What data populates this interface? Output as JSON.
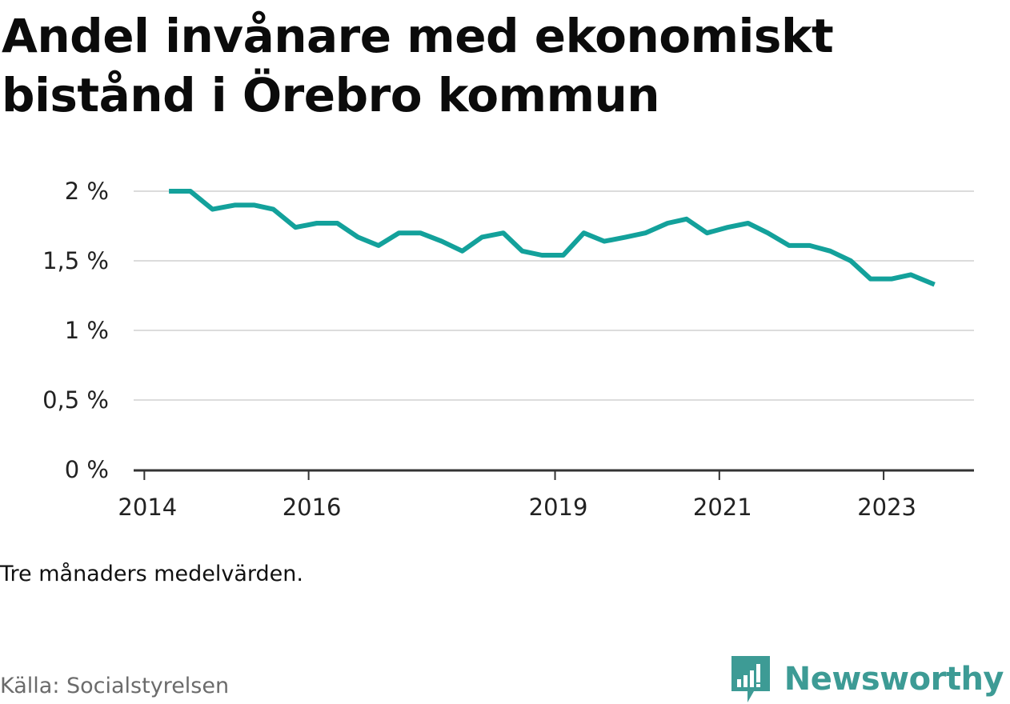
{
  "title": "Andel invånare med ekonomiskt bistånd i Örebro kommun",
  "note": "Tre månaders medelvärden.",
  "source": "Källa: Socialstyrelsen",
  "brand": {
    "name": "Newsworthy",
    "logo_icon": "bar-chart-speech-bubble-icon",
    "color": "#3d9b95"
  },
  "chart_data": {
    "type": "line",
    "y_ticks": [
      {
        "value": 0,
        "label": "0 %"
      },
      {
        "value": 0.5,
        "label": "0,5 %"
      },
      {
        "value": 1,
        "label": "1 %"
      },
      {
        "value": 1.5,
        "label": "1,5 %"
      },
      {
        "value": 2,
        "label": "2 %"
      }
    ],
    "x_ticks": [
      {
        "value": 2014.0,
        "label": "2014"
      },
      {
        "value": 2016.0,
        "label": "2016"
      },
      {
        "value": 2019.0,
        "label": "2019"
      },
      {
        "value": 2021.0,
        "label": "2021"
      },
      {
        "value": 2023.0,
        "label": "2023"
      }
    ],
    "ylim": [
      0,
      2
    ],
    "xlim": [
      2013.87,
      2024.1
    ],
    "grid": true,
    "line_color": "#13a19b",
    "series": [
      {
        "points": [
          {
            "x": 2014.3,
            "y": 2.0
          },
          {
            "x": 2014.56,
            "y": 2.0
          },
          {
            "x": 2014.83,
            "y": 1.87
          },
          {
            "x": 2015.1,
            "y": 1.9
          },
          {
            "x": 2015.34,
            "y": 1.9
          },
          {
            "x": 2015.57,
            "y": 1.87
          },
          {
            "x": 2015.84,
            "y": 1.74
          },
          {
            "x": 2016.1,
            "y": 1.77
          },
          {
            "x": 2016.35,
            "y": 1.77
          },
          {
            "x": 2016.6,
            "y": 1.67
          },
          {
            "x": 2016.85,
            "y": 1.61
          },
          {
            "x": 2017.1,
            "y": 1.7
          },
          {
            "x": 2017.36,
            "y": 1.7
          },
          {
            "x": 2017.62,
            "y": 1.64
          },
          {
            "x": 2017.87,
            "y": 1.57
          },
          {
            "x": 2018.11,
            "y": 1.67
          },
          {
            "x": 2018.37,
            "y": 1.7
          },
          {
            "x": 2018.6,
            "y": 1.57
          },
          {
            "x": 2018.84,
            "y": 1.54
          },
          {
            "x": 2019.1,
            "y": 1.54
          },
          {
            "x": 2019.35,
            "y": 1.7
          },
          {
            "x": 2019.6,
            "y": 1.64
          },
          {
            "x": 2019.86,
            "y": 1.67
          },
          {
            "x": 2020.1,
            "y": 1.7
          },
          {
            "x": 2020.37,
            "y": 1.77
          },
          {
            "x": 2020.6,
            "y": 1.8
          },
          {
            "x": 2020.85,
            "y": 1.7
          },
          {
            "x": 2021.1,
            "y": 1.74
          },
          {
            "x": 2021.35,
            "y": 1.77
          },
          {
            "x": 2021.59,
            "y": 1.7
          },
          {
            "x": 2021.85,
            "y": 1.61
          },
          {
            "x": 2022.1,
            "y": 1.61
          },
          {
            "x": 2022.35,
            "y": 1.57
          },
          {
            "x": 2022.6,
            "y": 1.5
          },
          {
            "x": 2022.84,
            "y": 1.37
          },
          {
            "x": 2023.1,
            "y": 1.37
          },
          {
            "x": 2023.33,
            "y": 1.4
          },
          {
            "x": 2023.62,
            "y": 1.33
          }
        ]
      }
    ]
  }
}
